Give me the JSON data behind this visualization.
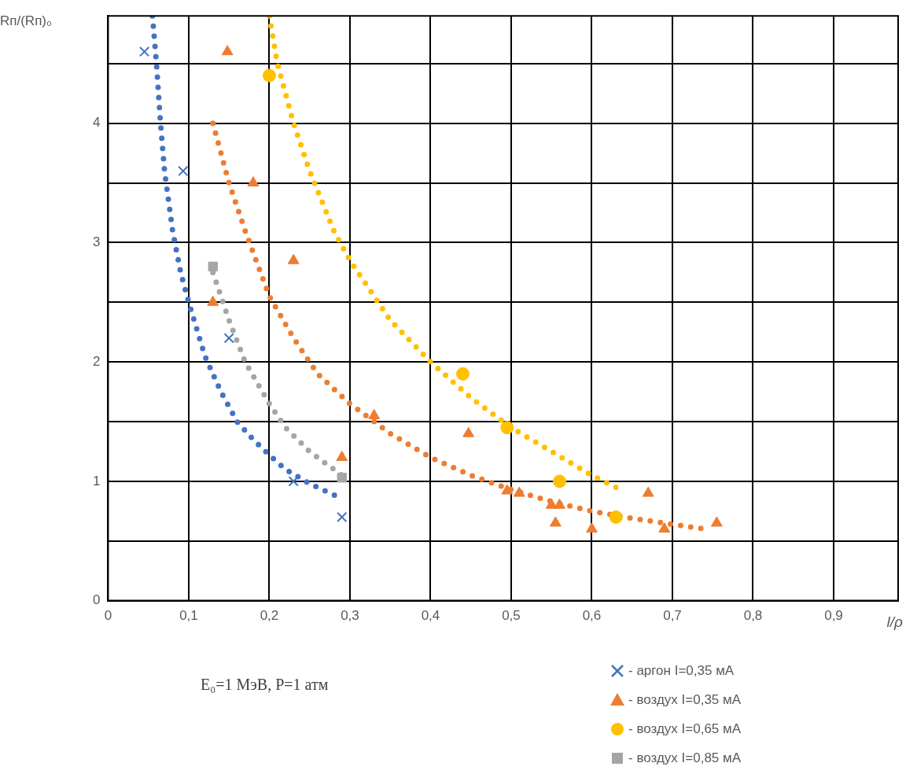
{
  "chart_data": {
    "type": "scatter",
    "xlabel": "l/ρ",
    "ylabel": "Rп/(Rп)₀",
    "annotations": [
      "E₀=1 МэВ, P=1 атм"
    ],
    "xlim": [
      0,
      0.98
    ],
    "ylim": [
      0,
      4.9
    ],
    "xticks": [
      0,
      {
        "value": 0.1,
        "label": "0,1"
      },
      {
        "value": 0.2,
        "label": "0,2"
      },
      {
        "value": 0.3,
        "label": "0,3"
      },
      {
        "value": 0.4,
        "label": "0,4"
      },
      {
        "value": 0.5,
        "label": "0,5"
      },
      {
        "value": 0.6,
        "label": "0,6"
      },
      {
        "value": 0.7,
        "label": "0,7"
      },
      {
        "value": 0.8,
        "label": "0,8"
      },
      {
        "value": 0.9,
        "label": "0,9"
      }
    ],
    "yticks": [
      0,
      {
        "value": 0.5,
        "label": null
      },
      1,
      {
        "value": 1.5,
        "label": null
      },
      2,
      {
        "value": 2.5,
        "label": null
      },
      3,
      {
        "value": 3.5,
        "label": null
      },
      4,
      {
        "value": 4.5,
        "label": null
      }
    ],
    "grid": true,
    "legend": "bottom right",
    "series": [
      {
        "name": "- аргон I=0,35 мА",
        "type": "scatter",
        "marker": "cross",
        "color": "#4472c4",
        "x": [
          0.045,
          0.093,
          0.15,
          0.23,
          0.29
        ],
        "values": [
          4.6,
          3.6,
          2.2,
          1.0,
          0.7
        ]
      },
      {
        "name": "- воздух I=0,35 мА",
        "type": "scatter",
        "marker": "triangle",
        "color": "#ed7d31",
        "x": [
          0.148,
          0.18,
          0.23,
          0.13,
          0.33,
          0.29,
          0.447,
          0.495,
          0.51,
          0.55,
          0.56,
          0.555,
          0.6,
          0.67,
          0.69,
          0.755
        ],
        "values": [
          4.6,
          3.5,
          2.85,
          2.5,
          1.55,
          1.2,
          1.4,
          0.92,
          0.9,
          0.8,
          0.8,
          0.65,
          0.6,
          0.9,
          0.6,
          0.65
        ]
      },
      {
        "name": "- воздух I=0,65 мА",
        "type": "scatter",
        "marker": "circle",
        "color": "#ffc000",
        "x": [
          0.2,
          0.44,
          0.495,
          0.56,
          0.63
        ],
        "values": [
          4.4,
          1.9,
          1.45,
          1.0,
          0.7
        ]
      },
      {
        "name": "- воздух I=0,85 мА",
        "type": "scatter",
        "marker": "square",
        "color": "#a5a5a5",
        "x": [
          0.13,
          0.29
        ],
        "values": [
          2.8,
          1.03
        ]
      },
      {
        "type": "line",
        "marker": "none",
        "line_style": "dotted",
        "color": "#4472c4",
        "x": [
          0.055,
          0.06,
          0.065,
          0.07,
          0.08,
          0.09,
          0.1,
          0.12,
          0.14,
          0.16,
          0.18,
          0.2,
          0.22,
          0.25,
          0.285
        ],
        "values": [
          4.9,
          4.5,
          4.0,
          3.6,
          3.1,
          2.75,
          2.5,
          2.05,
          1.75,
          1.5,
          1.35,
          1.22,
          1.1,
          0.98,
          0.87
        ]
      },
      {
        "type": "line",
        "marker": "none",
        "line_style": "dotted",
        "color": "#ed7d31",
        "x": [
          0.13,
          0.15,
          0.17,
          0.2,
          0.23,
          0.26,
          0.3,
          0.35,
          0.4,
          0.45,
          0.5,
          0.55,
          0.6,
          0.65,
          0.7,
          0.74
        ],
        "values": [
          4.0,
          3.5,
          3.1,
          2.55,
          2.2,
          1.9,
          1.65,
          1.4,
          1.2,
          1.05,
          0.93,
          0.83,
          0.75,
          0.69,
          0.64,
          0.6
        ]
      },
      {
        "type": "line",
        "marker": "none",
        "line_style": "dotted",
        "color": "#ffc000",
        "x": [
          0.2,
          0.21,
          0.23,
          0.25,
          0.28,
          0.3,
          0.35,
          0.4,
          0.45,
          0.5,
          0.55,
          0.6,
          0.63
        ],
        "values": [
          4.9,
          4.5,
          4.0,
          3.6,
          3.1,
          2.85,
          2.35,
          2.0,
          1.7,
          1.45,
          1.25,
          1.05,
          0.95
        ]
      },
      {
        "type": "line",
        "marker": "none",
        "line_style": "dotted",
        "color": "#a5a5a5",
        "x": [
          0.13,
          0.15,
          0.17,
          0.2,
          0.22,
          0.25,
          0.29
        ],
        "values": [
          2.75,
          2.35,
          2.0,
          1.65,
          1.45,
          1.25,
          1.05
        ]
      }
    ]
  }
}
